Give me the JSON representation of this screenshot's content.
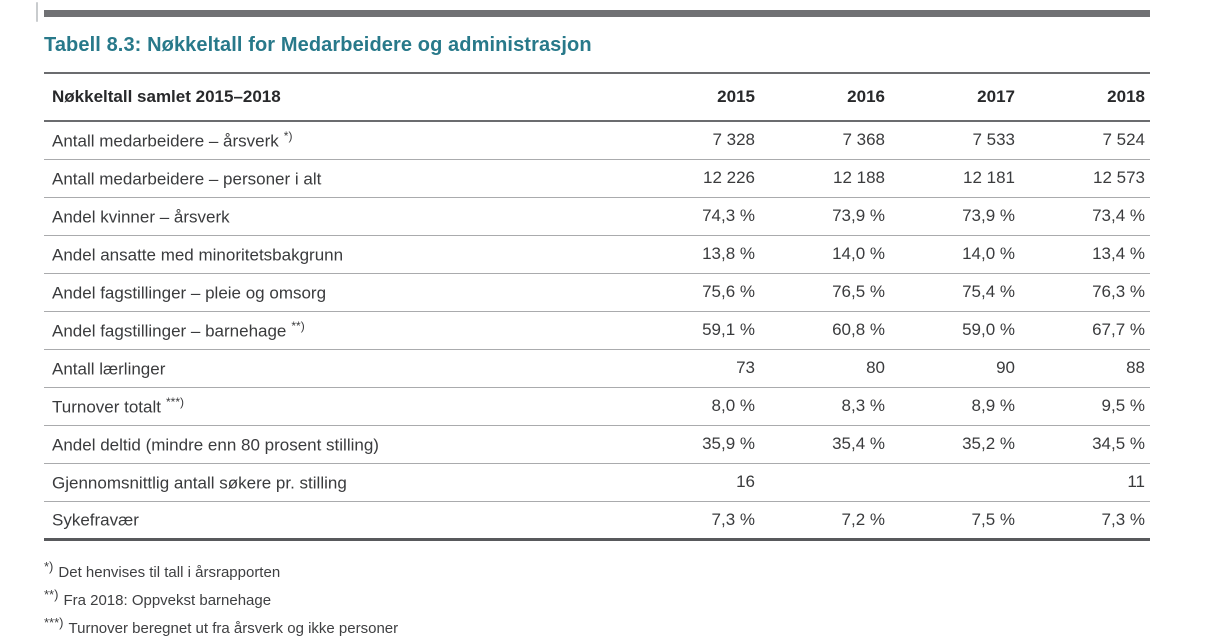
{
  "page": {
    "title": "Tabell 8.3: Nøkkeltall for Medarbeidere og administrasjon",
    "accent_color": "#28798A",
    "top_bar_color": "#707174"
  },
  "table": {
    "header": {
      "label": "Nøkkeltall samlet 2015–2018",
      "years": [
        "2015",
        "2016",
        "2017",
        "2018"
      ]
    },
    "rows": [
      {
        "label": "Antall medarbeidere – årsverk",
        "marker": "*)",
        "values": [
          "7 328",
          "7 368",
          "7 533",
          "7 524"
        ]
      },
      {
        "label": "Antall medarbeidere – personer i alt",
        "marker": "",
        "values": [
          "12 226",
          "12 188",
          "12 181",
          "12 573"
        ]
      },
      {
        "label": "Andel kvinner – årsverk",
        "marker": "",
        "values": [
          "74,3 %",
          "73,9 %",
          "73,9 %",
          "73,4 %"
        ]
      },
      {
        "label": "Andel ansatte med minoritetsbakgrunn",
        "marker": "",
        "values": [
          "13,8 %",
          "14,0 %",
          "14,0 %",
          "13,4 %"
        ]
      },
      {
        "label": "Andel fagstillinger – pleie og omsorg",
        "marker": "",
        "values": [
          "75,6 %",
          "76,5 %",
          "75,4 %",
          "76,3 %"
        ]
      },
      {
        "label": "Andel fagstillinger – barnehage",
        "marker": "**)",
        "values": [
          "59,1 %",
          "60,8 %",
          "59,0 %",
          "67,7 %"
        ]
      },
      {
        "label": "Antall lærlinger",
        "marker": "",
        "values": [
          "73",
          "80",
          "90",
          "88"
        ]
      },
      {
        "label": "Turnover totalt",
        "marker": "***)",
        "values": [
          "8,0 %",
          "8,3 %",
          "8,9 %",
          "9,5 %"
        ]
      },
      {
        "label": "Andel deltid (mindre enn 80 prosent stilling)",
        "marker": "",
        "values": [
          "35,9 %",
          "35,4 %",
          "35,2 %",
          "34,5 %"
        ]
      },
      {
        "label": "Gjennomsnittlig antall søkere pr. stilling",
        "marker": "",
        "values": [
          "16",
          "",
          "",
          "11"
        ]
      },
      {
        "label": "Sykefravær",
        "marker": "",
        "values": [
          "7,3 %",
          "7,2 %",
          "7,5 %",
          "7,3 %"
        ]
      }
    ],
    "footnotes": [
      {
        "marker": "*)",
        "text": "Det henvises til tall i årsrapporten"
      },
      {
        "marker": "**)",
        "text": "Fra 2018: Oppvekst barnehage"
      },
      {
        "marker": "***)",
        "text": "Turnover beregnet ut fra årsverk og ikke personer"
      }
    ]
  }
}
